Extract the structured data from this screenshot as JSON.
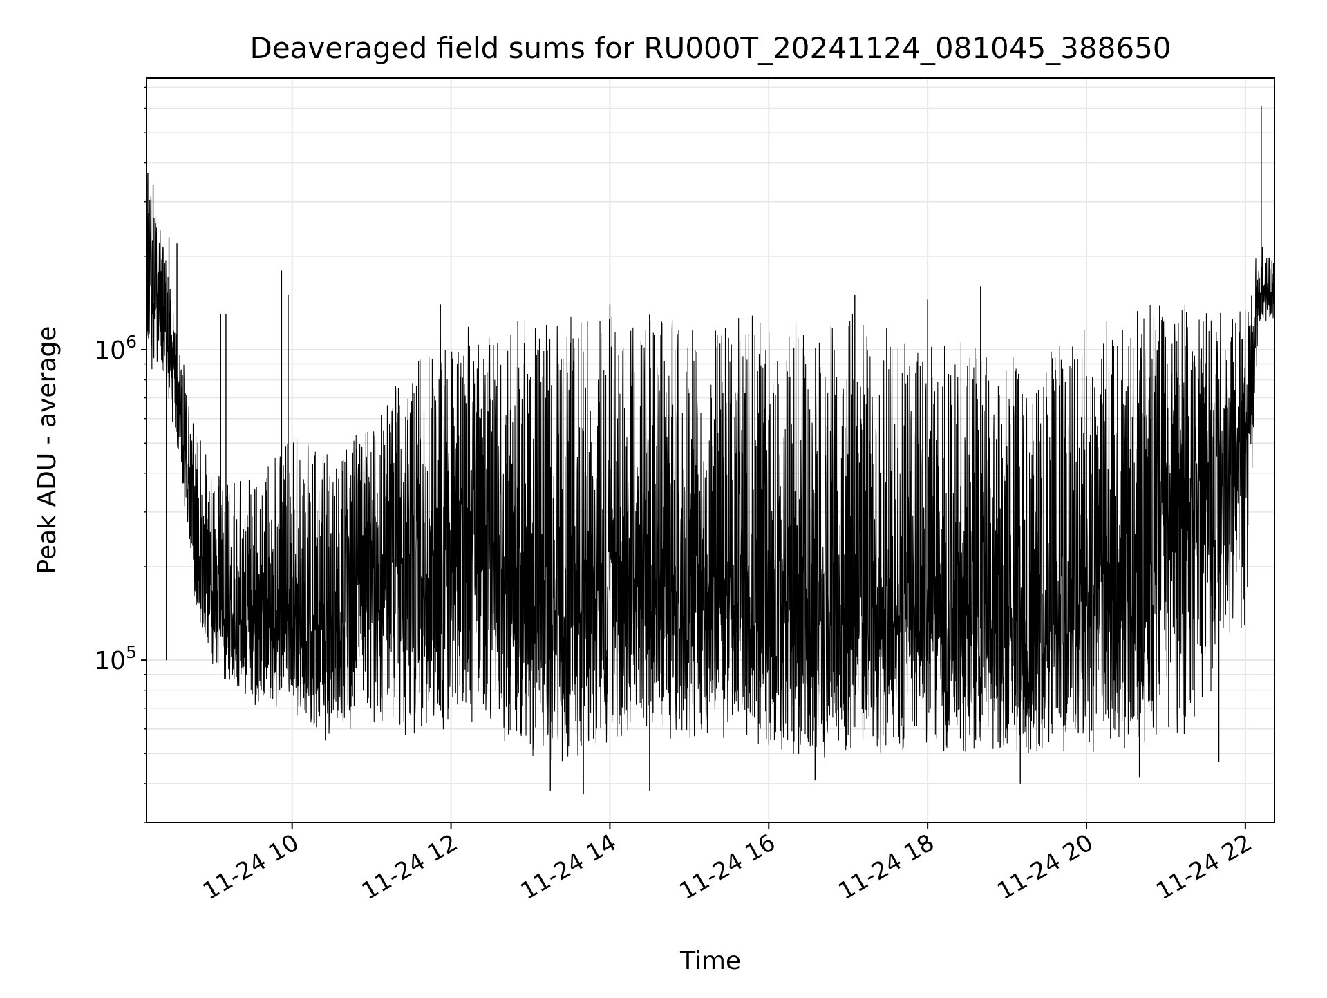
{
  "chart_data": {
    "type": "line",
    "title": "Deaveraged field sums for RU000T_20241124_081045_388650",
    "xlabel": "Time",
    "ylabel": "Peak ADU - average",
    "yscale": "log",
    "ylim": [
      30000,
      7500000
    ],
    "xlim": [
      "2024-11-24 08:10",
      "2024-11-24 22:22"
    ],
    "grid": true,
    "legend": "none",
    "line_color": "#000000",
    "grid_color": "#e6e6e6",
    "x_ticks": [
      {
        "t": "2024-11-24 10:00",
        "label": "11-24 10"
      },
      {
        "t": "2024-11-24 12:00",
        "label": "11-24 12"
      },
      {
        "t": "2024-11-24 14:00",
        "label": "11-24 14"
      },
      {
        "t": "2024-11-24 16:00",
        "label": "11-24 16"
      },
      {
        "t": "2024-11-24 18:00",
        "label": "11-24 18"
      },
      {
        "t": "2024-11-24 20:00",
        "label": "11-24 20"
      },
      {
        "t": "2024-11-24 22:00",
        "label": "11-24 22"
      }
    ],
    "y_ticks": [
      {
        "value": 100000,
        "base": "10",
        "exp": "5"
      },
      {
        "value": 1000000,
        "base": "10",
        "exp": "6"
      }
    ],
    "envelope": {
      "x": [
        "2024-11-24 08:10",
        "2024-11-24 08:20",
        "2024-11-24 08:35",
        "2024-11-24 08:45",
        "2024-11-24 09:00",
        "2024-11-24 09:30",
        "2024-11-24 10:00",
        "2024-11-24 10:15",
        "2024-11-24 10:30",
        "2024-11-24 11:00",
        "2024-11-24 11:30",
        "2024-11-24 12:00",
        "2024-11-24 12:30",
        "2024-11-24 13:00",
        "2024-11-24 13:30",
        "2024-11-24 14:00",
        "2024-11-24 14:30",
        "2024-11-24 15:00",
        "2024-11-24 15:30",
        "2024-11-24 16:00",
        "2024-11-24 16:30",
        "2024-11-24 17:00",
        "2024-11-24 17:30",
        "2024-11-24 18:00",
        "2024-11-24 18:30",
        "2024-11-24 19:00",
        "2024-11-24 19:30",
        "2024-11-24 20:00",
        "2024-11-24 20:30",
        "2024-11-24 21:00",
        "2024-11-24 21:30",
        "2024-11-24 22:00",
        "2024-11-24 22:10",
        "2024-11-24 22:22"
      ],
      "low": [
        900000,
        800000,
        450000,
        150000,
        90000,
        70000,
        70000,
        55000,
        55000,
        60000,
        55000,
        60000,
        60000,
        45000,
        45000,
        55000,
        55000,
        55000,
        55000,
        50000,
        45000,
        50000,
        50000,
        50000,
        50000,
        50000,
        50000,
        50000,
        50000,
        55000,
        60000,
        120000,
        1200000,
        1200000
      ],
      "mid": [
        1500000,
        1400000,
        700000,
        250000,
        160000,
        130000,
        150000,
        120000,
        130000,
        200000,
        220000,
        260000,
        250000,
        150000,
        170000,
        200000,
        180000,
        160000,
        150000,
        150000,
        150000,
        150000,
        160000,
        140000,
        130000,
        120000,
        120000,
        160000,
        220000,
        300000,
        400000,
        500000,
        1500000,
        1500000
      ],
      "high": [
        3500000,
        2600000,
        1100000,
        600000,
        400000,
        380000,
        550000,
        500000,
        450000,
        600000,
        900000,
        1200000,
        1200000,
        1300000,
        1300000,
        1300000,
        1300000,
        1300000,
        1300000,
        1300000,
        1300000,
        1300000,
        1300000,
        1100000,
        1100000,
        1000000,
        1000000,
        1200000,
        1400000,
        1400000,
        1400000,
        1400000,
        2200000,
        2000000
      ]
    },
    "spikes": [
      {
        "t": "2024-11-24 08:11",
        "value": 3700000
      },
      {
        "t": "2024-11-24 08:15",
        "value": 3400000
      },
      {
        "t": "2024-11-24 08:27",
        "value": 2300000
      },
      {
        "t": "2024-11-24 08:33",
        "value": 2200000
      },
      {
        "t": "2024-11-24 09:06",
        "value": 1300000
      },
      {
        "t": "2024-11-24 09:10",
        "value": 1300000
      },
      {
        "t": "2024-11-24 09:52",
        "value": 1800000
      },
      {
        "t": "2024-11-24 09:57",
        "value": 1500000
      },
      {
        "t": "2024-11-24 11:52",
        "value": 1400000
      },
      {
        "t": "2024-11-24 14:00",
        "value": 1400000
      },
      {
        "t": "2024-11-24 17:05",
        "value": 1500000
      },
      {
        "t": "2024-11-24 18:00",
        "value": 1450000
      },
      {
        "t": "2024-11-24 18:40",
        "value": 1600000
      },
      {
        "t": "2024-11-24 22:12",
        "value": 6100000
      }
    ],
    "dips": [
      {
        "t": "2024-11-24 08:25",
        "value": 100000
      },
      {
        "t": "2024-11-24 13:15",
        "value": 38000
      },
      {
        "t": "2024-11-24 13:40",
        "value": 37000
      },
      {
        "t": "2024-11-24 14:30",
        "value": 38000
      },
      {
        "t": "2024-11-24 16:35",
        "value": 41000
      },
      {
        "t": "2024-11-24 19:10",
        "value": 40000
      },
      {
        "t": "2024-11-24 20:40",
        "value": 42000
      },
      {
        "t": "2024-11-24 21:40",
        "value": 47000
      }
    ]
  }
}
